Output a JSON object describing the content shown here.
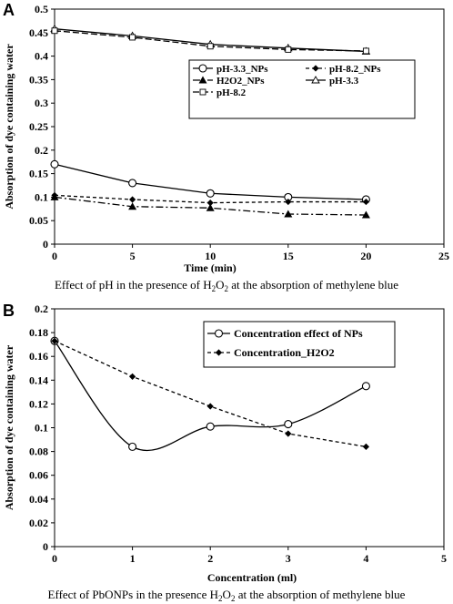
{
  "chart_data": [
    {
      "panel": "A",
      "type": "line",
      "caption_parts": [
        "Effect of pH in the presence of H",
        "2",
        "O",
        "2",
        " at the absorption of methylene blue"
      ],
      "xlabel": "Time (min)",
      "ylabel": "Absorption of dye containing water",
      "xlim": [
        0,
        25
      ],
      "ylim": [
        0,
        0.5
      ],
      "x_ticks": [
        "0",
        "5",
        "10",
        "15",
        "20",
        "25"
      ],
      "y_ticks": [
        "0",
        "0.05",
        "0.1",
        "0.15",
        "0.2",
        "0.25",
        "0.3",
        "0.35",
        "0.4",
        "0.45",
        "0.5"
      ],
      "x": [
        0,
        5,
        10,
        15,
        20
      ],
      "legend_position": "upper-right",
      "series": [
        {
          "name": "pH-3.3_NPs",
          "values": [
            0.17,
            0.13,
            0.108,
            0.1,
            0.095
          ],
          "marker": "circle",
          "dash": "solid"
        },
        {
          "name": "pH-8.2_NPs",
          "values": [
            0.104,
            0.095,
            0.088,
            0.09,
            0.09
          ],
          "marker": "diamond",
          "dash": "dash"
        },
        {
          "name": "H2O2_NPs",
          "values": [
            0.1,
            0.08,
            0.077,
            0.064,
            0.062
          ],
          "marker": "triangle",
          "dash": "dashdot"
        },
        {
          "name": "pH-3.3",
          "values": [
            0.458,
            0.443,
            0.425,
            0.417,
            0.41
          ],
          "marker": "triangle-open",
          "dash": "solid"
        },
        {
          "name": "pH-8.2",
          "values": [
            0.454,
            0.44,
            0.421,
            0.414,
            0.411
          ],
          "marker": "square-open",
          "dash": "longdash"
        }
      ]
    },
    {
      "panel": "B",
      "type": "line",
      "caption_parts": [
        "Effect of PbONPs in the presence H",
        "2",
        "O",
        "2",
        " at the absorption of methylene blue"
      ],
      "xlabel": "Concentration (ml)",
      "ylabel": "Absorption of dye containing water",
      "xlim": [
        0,
        5
      ],
      "ylim": [
        0,
        0.2
      ],
      "x_ticks": [
        "0",
        "1",
        "2",
        "3",
        "4",
        "5"
      ],
      "y_ticks": [
        "0",
        "0.02",
        "0.04",
        "0.06",
        "0.08",
        "0.1",
        "0.12",
        "0.14",
        "0.16",
        "0.18",
        "0.2"
      ],
      "x": [
        0,
        1,
        2,
        3,
        4
      ],
      "legend_position": "top-right",
      "series": [
        {
          "name": "Concentration effect of NPs",
          "values": [
            0.173,
            0.084,
            0.101,
            0.103,
            0.135
          ],
          "marker": "circle",
          "dash": "solid",
          "smooth": true
        },
        {
          "name": "Concentration_H2O2",
          "values": [
            0.173,
            0.143,
            0.118,
            0.095,
            0.084
          ],
          "marker": "diamond",
          "dash": "dash"
        }
      ]
    }
  ]
}
